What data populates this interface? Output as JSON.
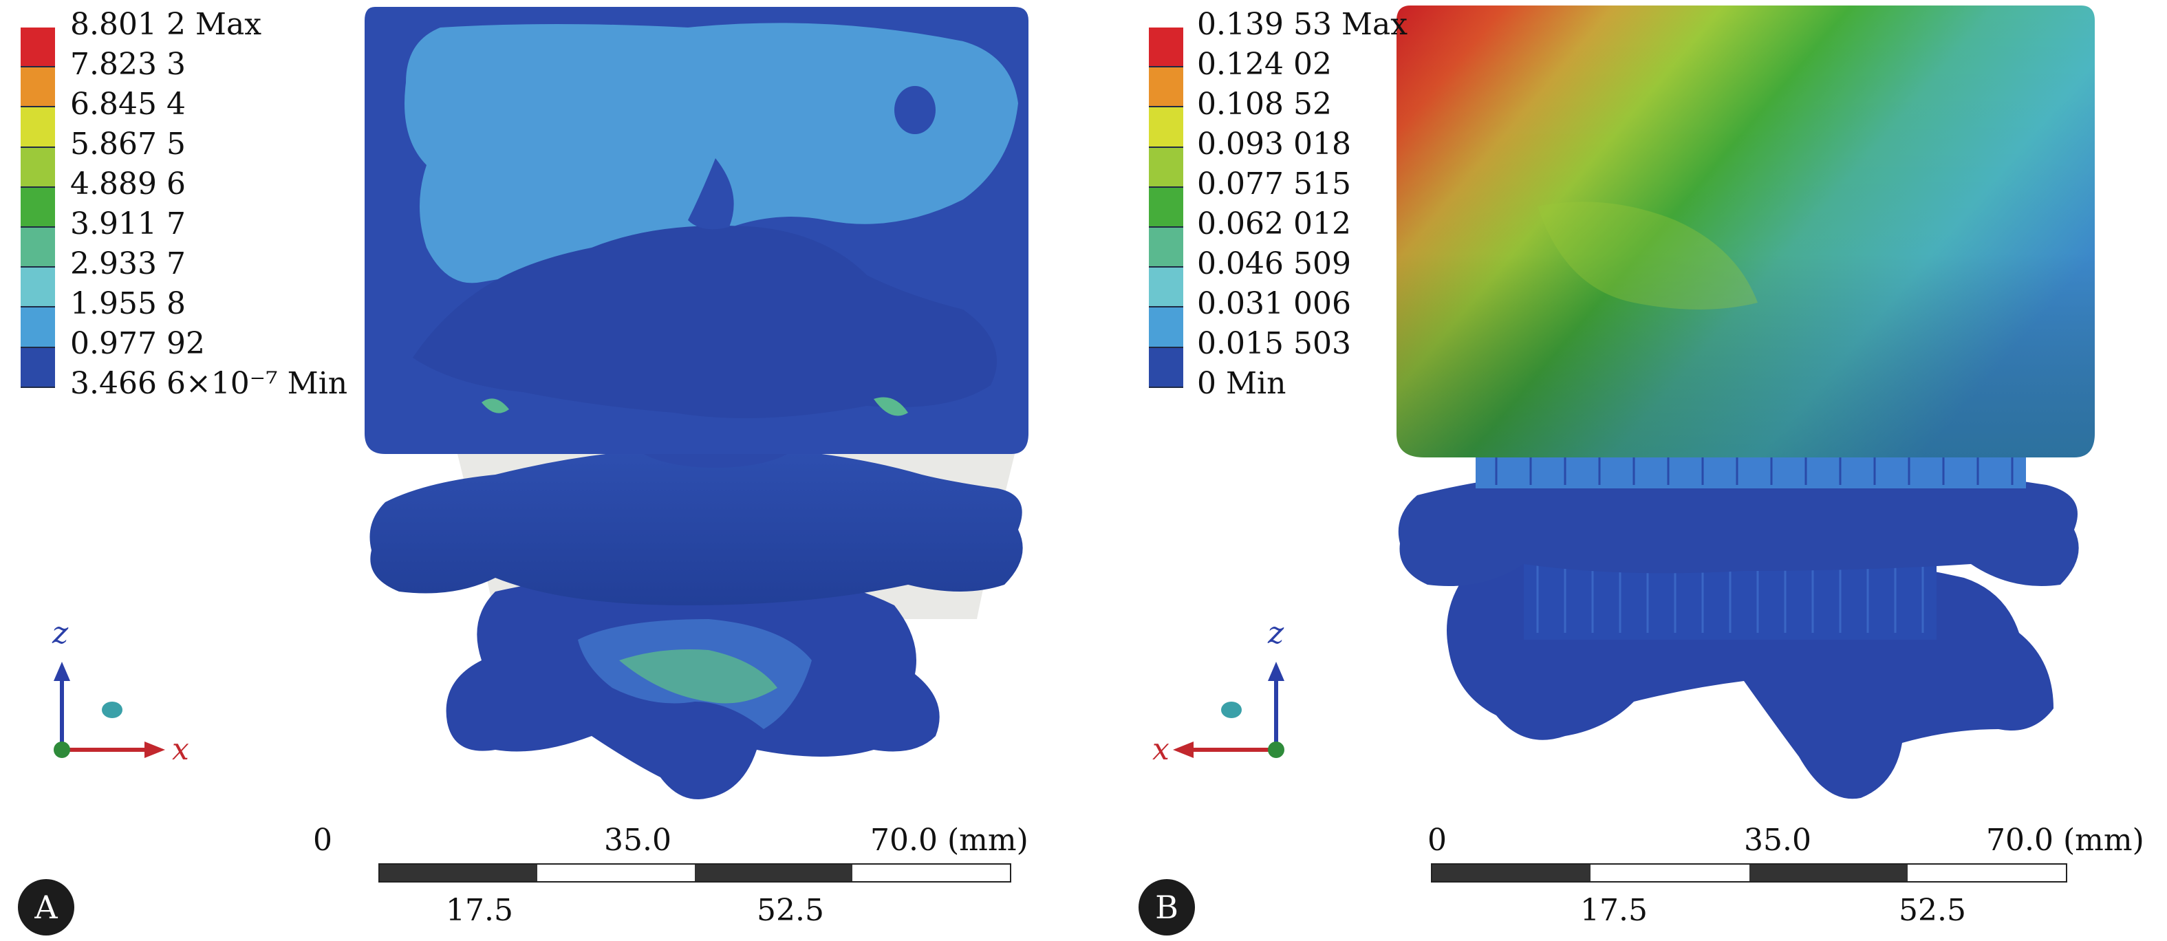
{
  "panels": [
    {
      "id": "A",
      "legend": {
        "colors": [
          "#d8252b",
          "#e8912a",
          "#d7dd32",
          "#9cc93a",
          "#45ad3a",
          "#5ab98f",
          "#6cc6cf",
          "#4aa0d8",
          "#2b4aa8"
        ],
        "labels": [
          "8.801 2 Max",
          "7.823 3",
          "6.845 4",
          "5.867 5",
          "4.889 6",
          "3.911 7",
          "2.933 7",
          "1.955 8",
          "0.977 92",
          "3.466 6×10⁻⁷ Min"
        ]
      },
      "scale": {
        "ticks_top": [
          "0",
          "35.0",
          "70.0 (mm)"
        ],
        "ticks_bottom": [
          "17.5",
          "52.5"
        ]
      },
      "axes": {
        "vertical": "z",
        "horizontal": "x"
      }
    },
    {
      "id": "B",
      "legend": {
        "colors": [
          "#d8252b",
          "#e8912a",
          "#d7dd32",
          "#9cc93a",
          "#45ad3a",
          "#5ab98f",
          "#6cc6cf",
          "#4aa0d8",
          "#2b4aa8"
        ],
        "labels": [
          "0.139 53 Max",
          "0.124 02",
          "0.108 52",
          "0.093 018",
          "0.077 515",
          "0.062 012",
          "0.046 509",
          "0.031 006",
          "0.015 503",
          "0 Min"
        ]
      },
      "scale": {
        "ticks_top": [
          "0",
          "35.0",
          "70.0 (mm)"
        ],
        "ticks_bottom": [
          "17.5",
          "52.5"
        ]
      },
      "axes": {
        "vertical": "z",
        "horizontal": "x"
      }
    }
  ]
}
